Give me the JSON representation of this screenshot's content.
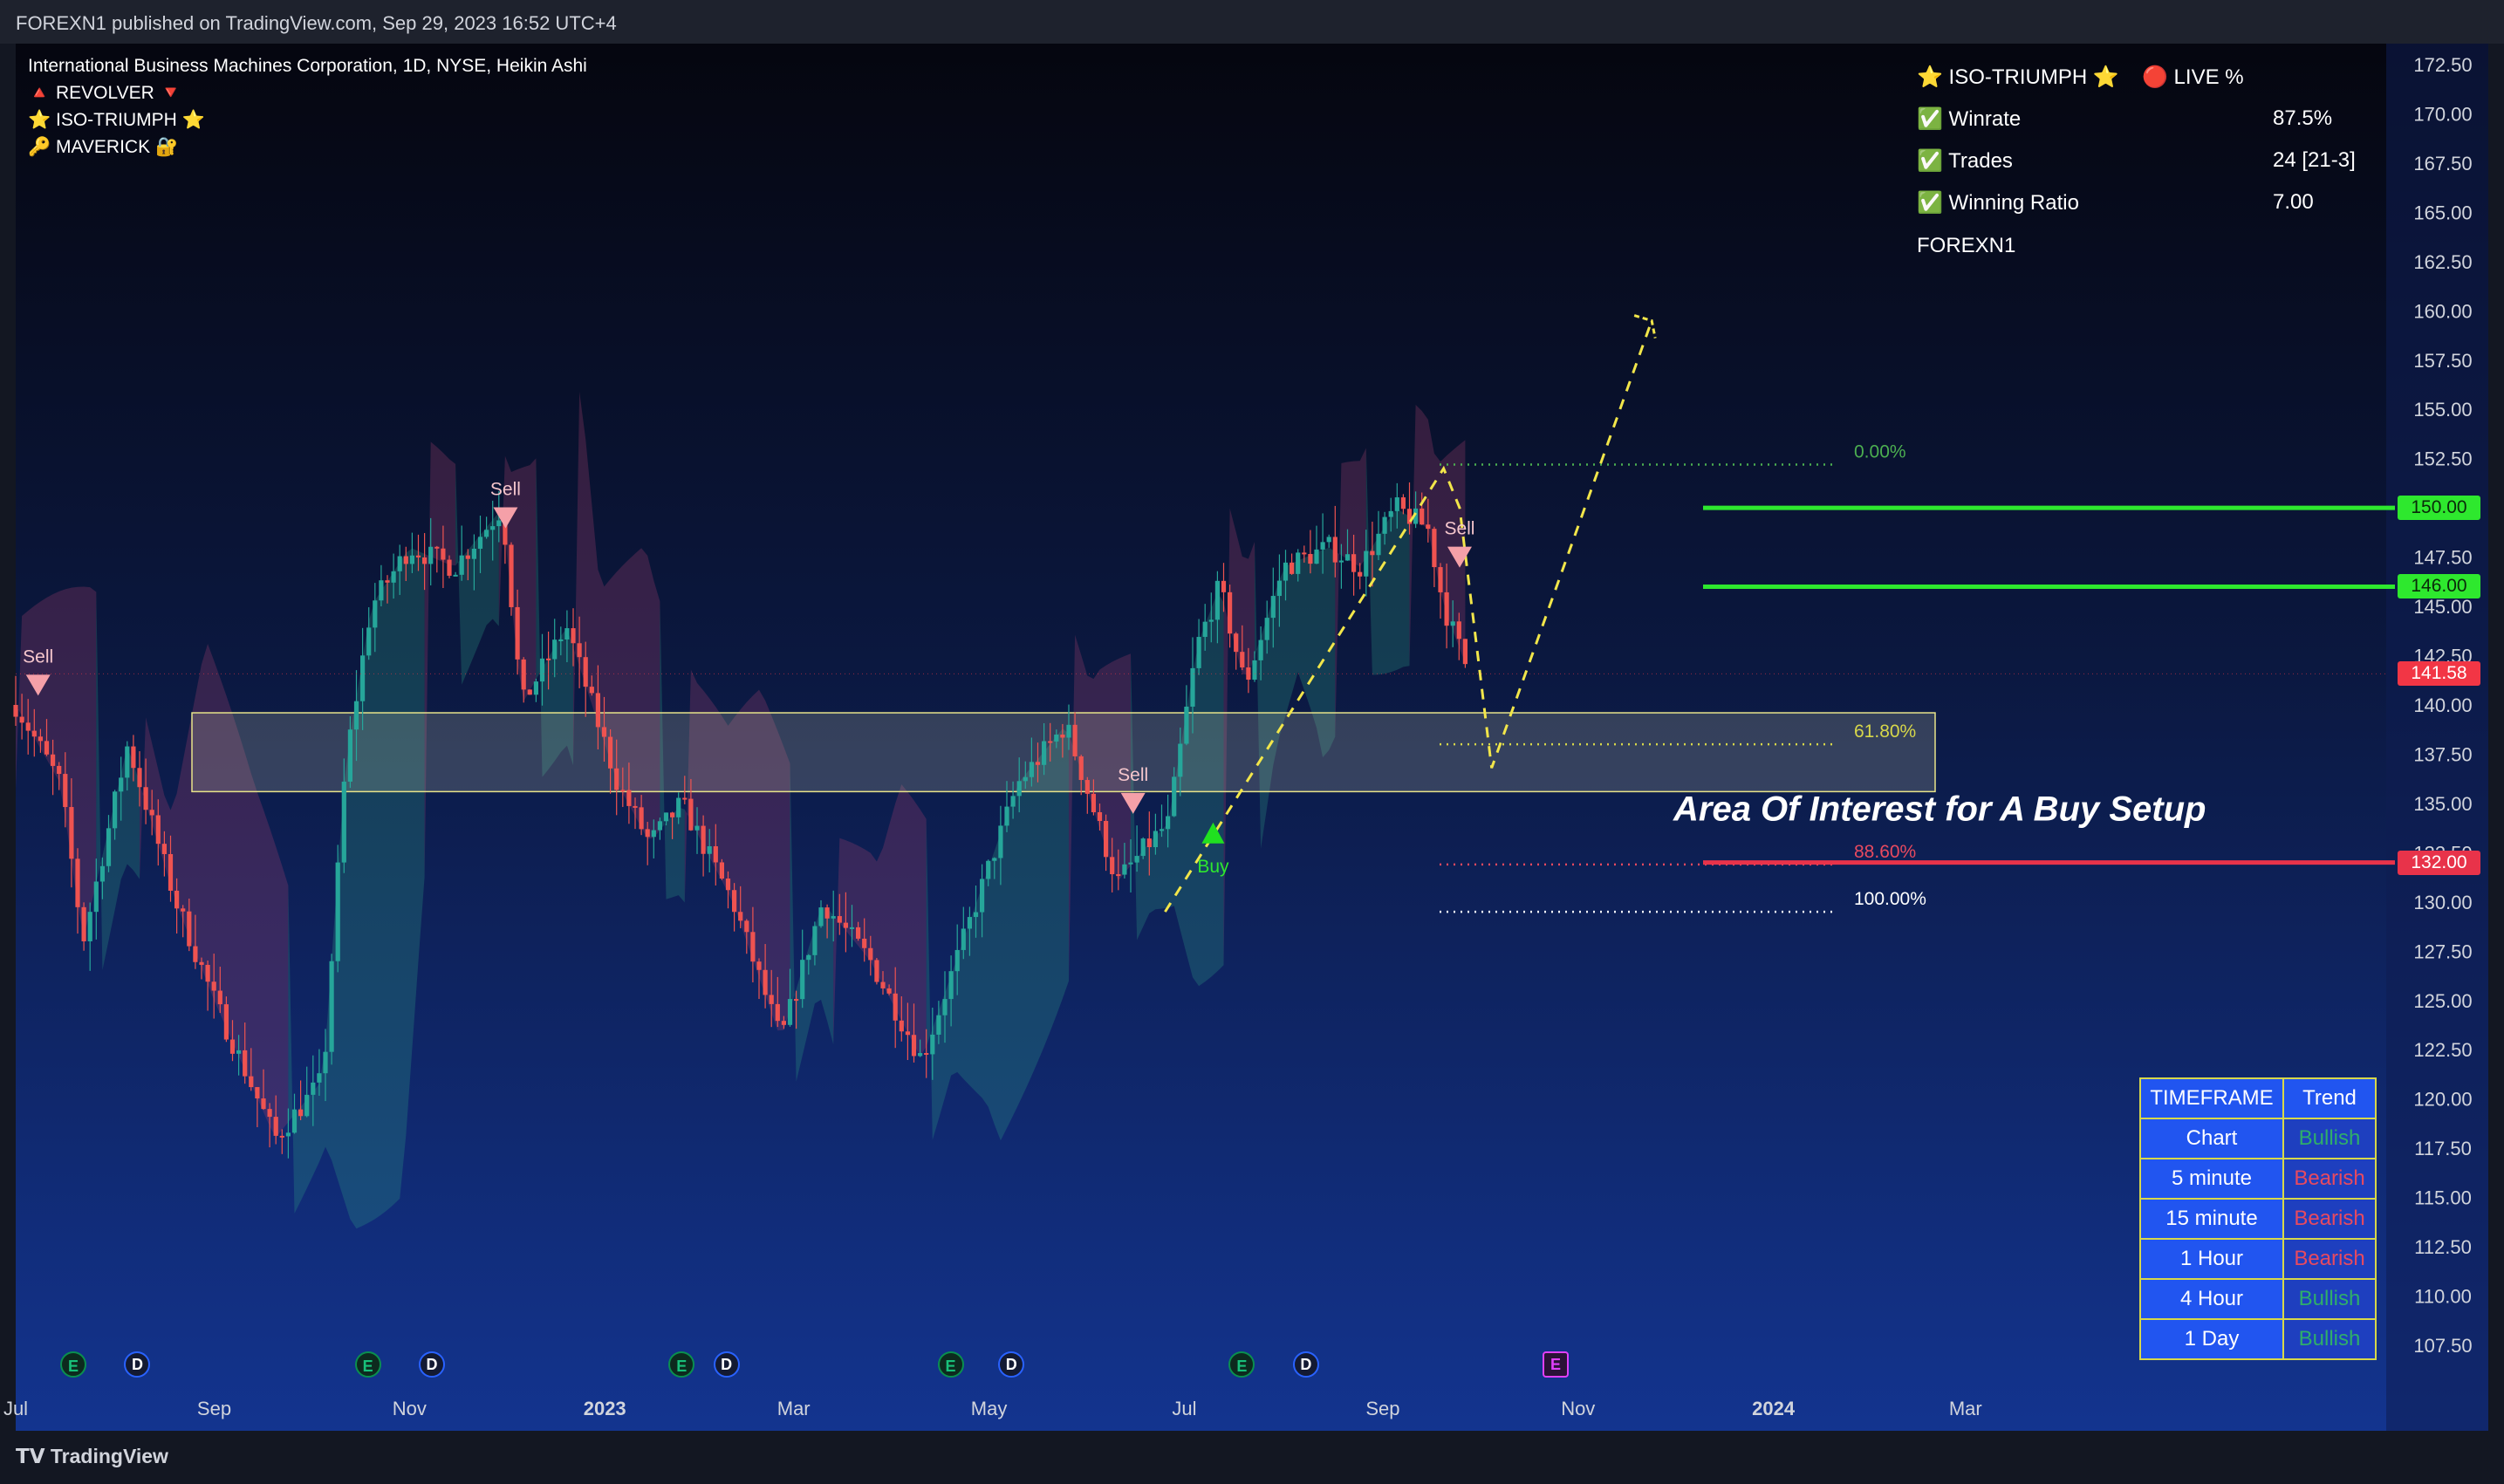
{
  "header": {
    "publish_line": "FOREXN1 published on TradingView.com, Sep 29, 2023 16:52 UTC+4"
  },
  "footer": {
    "brand": "TradingView"
  },
  "legend": {
    "symbol_line": "International Business Machines Corporation, 1D, NYSE, Heikin Ashi",
    "indicators": [
      "🔺 REVOLVER 🔻",
      "⭐ ISO-TRIUMPH ⭐",
      "🔑 MAVERICK 🔐"
    ]
  },
  "stats_panel": {
    "title": "⭐ ISO-TRIUMPH ⭐",
    "live": "🔴 LIVE %",
    "rows": [
      {
        "label": "✅ Winrate",
        "value": "87.5%"
      },
      {
        "label": "✅ Trades",
        "value": "24 [21-3]"
      },
      {
        "label": "✅ Winning Ratio",
        "value": "7.00"
      }
    ],
    "author": "FOREXN1"
  },
  "trend_table": {
    "header": [
      "TIMEFRAME",
      "Trend"
    ],
    "rows": [
      {
        "tf": "Chart",
        "trend": "Bullish"
      },
      {
        "tf": "5 minute",
        "trend": "Bearish"
      },
      {
        "tf": "15 minute",
        "trend": "Bearish"
      },
      {
        "tf": "1 Hour",
        "trend": "Bearish"
      },
      {
        "tf": "4 Hour",
        "trend": "Bullish"
      },
      {
        "tf": "1 Day",
        "trend": "Bullish"
      }
    ],
    "colors": {
      "Bullish": "#2fae6a",
      "Bearish": "#e84a5f"
    }
  },
  "chart_data": {
    "type": "line",
    "chart_style": "heikin-ashi candlesticks",
    "x_ticks": [
      "Jul",
      "Sep",
      "Nov",
      "2023",
      "Mar",
      "May",
      "Jul",
      "Sep",
      "Nov",
      "2024",
      "Mar"
    ],
    "y_ticks": [
      "172.50",
      "170.00",
      "167.50",
      "165.00",
      "162.50",
      "160.00",
      "157.50",
      "155.00",
      "152.50",
      "150.00",
      "147.50",
      "145.00",
      "142.50",
      "140.00",
      "137.50",
      "135.00",
      "132.50",
      "130.00",
      "127.50",
      "125.00",
      "122.50",
      "120.00",
      "117.50",
      "115.00",
      "112.50",
      "110.00",
      "107.50"
    ],
    "ylim": [
      105,
      174
    ],
    "series": [
      {
        "x": [
          "2022-07-01",
          "2022-07-15",
          "2022-07-22",
          "2022-08-05",
          "2022-08-20",
          "2022-09-01",
          "2022-09-20",
          "2022-10-05",
          "2022-10-12",
          "2022-10-20",
          "2022-11-01",
          "2022-11-15",
          "2022-11-30",
          "2022-12-06",
          "2022-12-20",
          "2023-01-05",
          "2023-01-15",
          "2023-01-25",
          "2023-02-10",
          "2023-02-25",
          "2023-03-10",
          "2023-03-25",
          "2023-04-10",
          "2023-04-25",
          "2023-05-10",
          "2023-05-25",
          "2023-06-10",
          "2023-06-20",
          "2023-06-26",
          "2023-07-05",
          "2023-07-12",
          "2023-07-20",
          "2023-08-01",
          "2023-08-15",
          "2023-08-25",
          "2023-09-05",
          "2023-09-15",
          "2023-09-20",
          "2023-09-28"
        ],
        "values": [
          140,
          136,
          128,
          138,
          130,
          125,
          118,
          121,
          137,
          145,
          148,
          147,
          150,
          140,
          144,
          136,
          133,
          135,
          130,
          123,
          130,
          127,
          122,
          129,
          136,
          139,
          131,
          133,
          134,
          143,
          146,
          141,
          147,
          148,
          147,
          150,
          149,
          145,
          141.58
        ]
      }
    ],
    "signals": [
      {
        "label": "Sell",
        "date": "2022-07-08",
        "price": 141
      },
      {
        "label": "Sell",
        "date": "2022-12-01",
        "price": 149.5
      },
      {
        "label": "Sell",
        "date": "2023-06-15",
        "price": 135
      },
      {
        "label": "Buy",
        "date": "2023-07-10",
        "price": 133.5
      },
      {
        "label": "Sell",
        "date": "2023-09-25",
        "price": 147.5
      }
    ],
    "fibonacci": [
      {
        "label": "0.00%",
        "price": 152.2,
        "color": "#4caf50"
      },
      {
        "label": "61.80%",
        "price": 138.0,
        "color": "#d7d74a"
      },
      {
        "label": "88.60%",
        "price": 131.9,
        "color": "#e84a5f"
      },
      {
        "label": "100.00%",
        "price": 129.5,
        "color": "#ffffff"
      }
    ],
    "levels": [
      {
        "price": 150.0,
        "label": "150.00",
        "color": "#2ee82e"
      },
      {
        "price": 146.0,
        "label": "146.00",
        "color": "#2ee82e"
      },
      {
        "price": 132.0,
        "label": "132.00",
        "color": "#e8334a"
      }
    ],
    "last_price": {
      "price": 141.58,
      "label": "141.58",
      "color": "#f23645"
    },
    "zone": {
      "top": 139.6,
      "bottom": 135.6,
      "label": "Area Of Interest for A Buy Setup"
    },
    "projection": [
      {
        "date": "2023-06-25",
        "price": 129.5
      },
      {
        "date": "2023-09-20",
        "price": 152.0
      },
      {
        "date": "2023-09-25",
        "price": 150.0
      },
      {
        "date": "2023-10-05",
        "price": 136.8
      },
      {
        "date": "2023-11-24",
        "price": 159.5
      }
    ],
    "event_markers": [
      {
        "type": "E",
        "date": "2022-07-19"
      },
      {
        "type": "D",
        "date": "2022-08-08"
      },
      {
        "type": "E",
        "date": "2022-10-19"
      },
      {
        "type": "D",
        "date": "2022-11-08"
      },
      {
        "type": "E",
        "date": "2023-01-25"
      },
      {
        "type": "D",
        "date": "2023-02-08"
      },
      {
        "type": "E",
        "date": "2023-04-19"
      },
      {
        "type": "D",
        "date": "2023-05-08"
      },
      {
        "type": "E",
        "date": "2023-07-19"
      },
      {
        "type": "D",
        "date": "2023-08-08"
      },
      {
        "type": "E",
        "date": "2023-10-25",
        "future": true
      }
    ]
  }
}
